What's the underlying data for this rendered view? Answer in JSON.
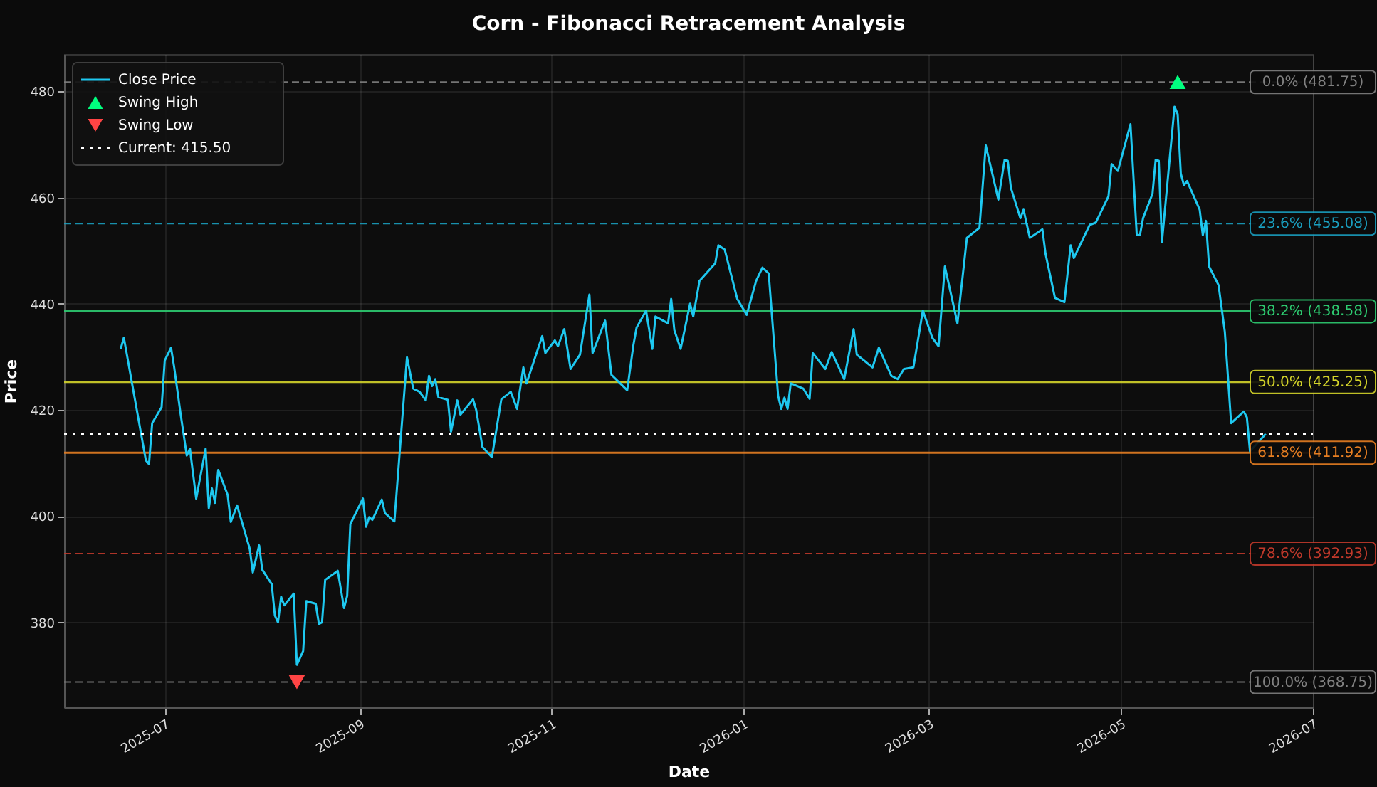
{
  "chart_data": {
    "type": "line",
    "title": "Corn - Fibonacci Retracement Analysis",
    "xlabel": "Date",
    "ylabel": "Price",
    "xlim": [
      "2025-05-30",
      "2026-07-01"
    ],
    "ylim": [
      364,
      487
    ],
    "xticks": [
      "2025-07",
      "2025-09",
      "2025-11",
      "2026-01",
      "2026-03",
      "2026-05",
      "2026-07"
    ],
    "yticks": [
      380,
      400,
      420,
      440,
      460,
      480
    ],
    "grid": true,
    "legend": "top left",
    "series": [
      {
        "name": "Close Price",
        "color": "#1ec8f0",
        "line_style": "solid",
        "marker": "none",
        "x": [
          "2025-06-17",
          "2025-06-18",
          "2025-06-25",
          "2025-06-26",
          "2025-06-27",
          "2025-06-30",
          "2025-07-01",
          "2025-07-03",
          "2025-07-04",
          "2025-07-06",
          "2025-07-08",
          "2025-07-09",
          "2025-07-11",
          "2025-07-14",
          "2025-07-15",
          "2025-07-16",
          "2025-07-17",
          "2025-07-18",
          "2025-07-21",
          "2025-07-22",
          "2025-07-24",
          "2025-07-28",
          "2025-07-29",
          "2025-07-31",
          "2025-08-01",
          "2025-08-04",
          "2025-08-05",
          "2025-08-06",
          "2025-08-07",
          "2025-08-08",
          "2025-08-11",
          "2025-08-12",
          "2025-08-14",
          "2025-08-15",
          "2025-08-18",
          "2025-08-19",
          "2025-08-20",
          "2025-08-21",
          "2025-08-25",
          "2025-08-27",
          "2025-08-28",
          "2025-08-29",
          "2025-09-02",
          "2025-09-03",
          "2025-09-04",
          "2025-09-05",
          "2025-09-08",
          "2025-09-09",
          "2025-09-12",
          "2025-09-16",
          "2025-09-18",
          "2025-09-20",
          "2025-09-22",
          "2025-09-23",
          "2025-09-24",
          "2025-09-25",
          "2025-09-26",
          "2025-09-29",
          "2025-09-30",
          "2025-10-02",
          "2025-10-03",
          "2025-10-07",
          "2025-10-08",
          "2025-10-10",
          "2025-10-13",
          "2025-10-16",
          "2025-10-19",
          "2025-10-21",
          "2025-10-23",
          "2025-10-24",
          "2025-10-29",
          "2025-10-30",
          "2025-11-02",
          "2025-11-03",
          "2025-11-05",
          "2025-11-07",
          "2025-11-10",
          "2025-11-13",
          "2025-11-14",
          "2025-11-18",
          "2025-11-20",
          "2025-11-25",
          "2025-11-27",
          "2025-11-28",
          "2025-12-01",
          "2025-12-03",
          "2025-12-04",
          "2025-12-08",
          "2025-12-09",
          "2025-12-10",
          "2025-12-12",
          "2025-12-15",
          "2025-12-16",
          "2025-12-18",
          "2025-12-23",
          "2025-12-24",
          "2025-12-26",
          "2025-12-30",
          "2026-01-02",
          "2026-01-05",
          "2026-01-07",
          "2026-01-09",
          "2026-01-12",
          "2026-01-13",
          "2026-01-14",
          "2026-01-15",
          "2026-01-16",
          "2026-01-20",
          "2026-01-22",
          "2026-01-23",
          "2026-01-27",
          "2026-01-29",
          "2026-02-02",
          "2026-02-05",
          "2026-02-06",
          "2026-02-11",
          "2026-02-13",
          "2026-02-17",
          "2026-02-19",
          "2026-02-21",
          "2026-02-24",
          "2026-02-27",
          "2026-03-02",
          "2026-03-04",
          "2026-03-06",
          "2026-03-10",
          "2026-03-13",
          "2026-03-17",
          "2026-03-19",
          "2026-03-23",
          "2026-03-25",
          "2026-03-26",
          "2026-03-27",
          "2026-03-30",
          "2026-03-31",
          "2026-04-02",
          "2026-04-06",
          "2026-04-07",
          "2026-04-10",
          "2026-04-13",
          "2026-04-15",
          "2026-04-16",
          "2026-04-21",
          "2026-04-23",
          "2026-04-27",
          "2026-04-28",
          "2026-04-30",
          "2026-05-04",
          "2026-05-06",
          "2026-05-07",
          "2026-05-08",
          "2026-05-11",
          "2026-05-12",
          "2026-05-13",
          "2026-05-14",
          "2026-05-18",
          "2026-05-19",
          "2026-05-20",
          "2026-05-21",
          "2026-05-22",
          "2026-05-26",
          "2026-05-27",
          "2026-05-28",
          "2026-05-29",
          "2026-06-01",
          "2026-06-03",
          "2026-06-05",
          "2026-06-09",
          "2026-06-10",
          "2026-06-11",
          "2026-06-16"
        ],
        "values": [
          431.5,
          433.6,
          410.5,
          409.8,
          417.5,
          420.5,
          429.3,
          431.7,
          428,
          419.4,
          411.4,
          412.7,
          403.3,
          412.7,
          401.5,
          405.2,
          402.5,
          408.7,
          404,
          398.9,
          402,
          393.9,
          389.4,
          394.5,
          389.9,
          387.2,
          381.3,
          380,
          384.8,
          383.2,
          385.4,
          372,
          374.6,
          384,
          383.5,
          379.7,
          380,
          388,
          389.7,
          382.7,
          385,
          398.5,
          403.3,
          398,
          399.8,
          399.3,
          403.1,
          400.6,
          399,
          429.9,
          424,
          423.4,
          421.8,
          426.4,
          424.5,
          425.8,
          422.4,
          421.9,
          415.9,
          421.8,
          419.1,
          422,
          420,
          413,
          411.1,
          422,
          423.4,
          420.2,
          428,
          425,
          433.9,
          430.7,
          433.1,
          432,
          435.2,
          427.7,
          430.4,
          441.7,
          430.7,
          436.8,
          426.6,
          423.7,
          432.3,
          435.5,
          438.7,
          431.5,
          437.6,
          436.3,
          440.9,
          435,
          431.5,
          440,
          437.6,
          444.3,
          447.6,
          451,
          450.2,
          440.9,
          437.9,
          444.3,
          446.8,
          445.7,
          422.6,
          420.2,
          422.3,
          420.2,
          425,
          424,
          422.1,
          430.7,
          427.7,
          430.9,
          425.8,
          435.2,
          430.4,
          428,
          431.7,
          426.4,
          425.8,
          427.7,
          428,
          438.7,
          433.6,
          432,
          447,
          436.3,
          452.4,
          454.3,
          469.8,
          459.6,
          467.1,
          466.9,
          461.8,
          456.1,
          457.7,
          452.4,
          454,
          449.4,
          441.1,
          440.3,
          451,
          448.6,
          454.8,
          455.3,
          460.2,
          466.3,
          465,
          473.8,
          452.9,
          452.9,
          456.1,
          460.7,
          467.1,
          466.9,
          451.6,
          477.1,
          475.7,
          464.5,
          462.3,
          463.1,
          457.7,
          452.9,
          455.6,
          447,
          443.5,
          434.7,
          417.5,
          419.7,
          418.6,
          412.2,
          415.5
        ]
      },
      {
        "name": "Swing High",
        "type": "scatter",
        "color": "#00ff7f",
        "marker": "triangle",
        "x": [
          "2026-05-19"
        ],
        "values": [
          481.75
        ]
      },
      {
        "name": "Swing Low",
        "type": "scatter",
        "color": "#ff4444",
        "marker": "triangle-down",
        "x": [
          "2025-08-12"
        ],
        "values": [
          368.75
        ]
      },
      {
        "name": "Current: 415.50",
        "color": "#ffffff",
        "line_style": "dotted",
        "marker": "none",
        "x": [
          "2025-05-30",
          "2026-07-01"
        ],
        "values": [
          415.5,
          415.5
        ]
      }
    ],
    "ref_lines": [
      {
        "axis": "y",
        "value": 481.75,
        "label": "0.0% (481.75)",
        "color": "#808080",
        "line_style": "dashed"
      },
      {
        "axis": "y",
        "value": 455.08,
        "label": "23.6% (455.08)",
        "color": "#1a9ebf",
        "line_style": "dashed"
      },
      {
        "axis": "y",
        "value": 438.58,
        "label": "38.2% (438.58)",
        "color": "#2ecc71",
        "line_style": "solid"
      },
      {
        "axis": "y",
        "value": 425.25,
        "label": "50.0% (425.25)",
        "color": "#d4d42a",
        "line_style": "solid"
      },
      {
        "axis": "y",
        "value": 411.92,
        "label": "61.8% (411.92)",
        "color": "#e67e22",
        "line_style": "solid"
      },
      {
        "axis": "y",
        "value": 392.93,
        "label": "78.6% (392.93)",
        "color": "#c0392b",
        "line_style": "dashed"
      },
      {
        "axis": "y",
        "value": 368.75,
        "label": "100.0% (368.75)",
        "color": "#808080",
        "line_style": "dashed"
      }
    ]
  }
}
